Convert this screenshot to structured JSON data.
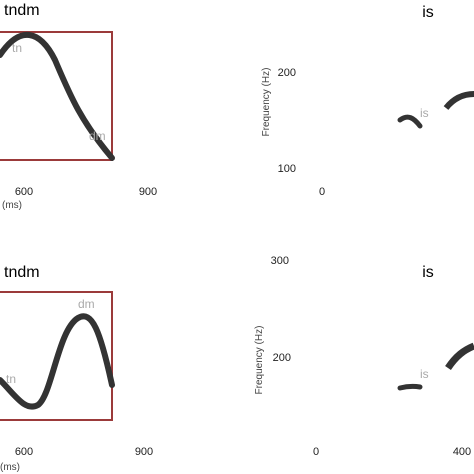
{
  "panels": [
    {
      "title": "tndm",
      "labels": [
        "tn",
        "dm"
      ],
      "xticks": [
        "600",
        "900"
      ],
      "xlabel": "(ms)"
    },
    {
      "title": "is",
      "labels": [
        "is"
      ],
      "ylabel": "Frequency (Hz)",
      "yticks": [
        "200",
        "100"
      ],
      "xticks": [
        "0"
      ]
    },
    {
      "title": "tndm",
      "labels": [
        "dm",
        "tn"
      ],
      "xticks": [
        "600",
        "900"
      ],
      "xlabel": "(ms)"
    },
    {
      "title": "is",
      "labels": [
        "is"
      ],
      "ylabel": "Frequency (Hz)",
      "yticks": [
        "300",
        "200"
      ],
      "xticks": [
        "0",
        "400"
      ]
    }
  ]
}
